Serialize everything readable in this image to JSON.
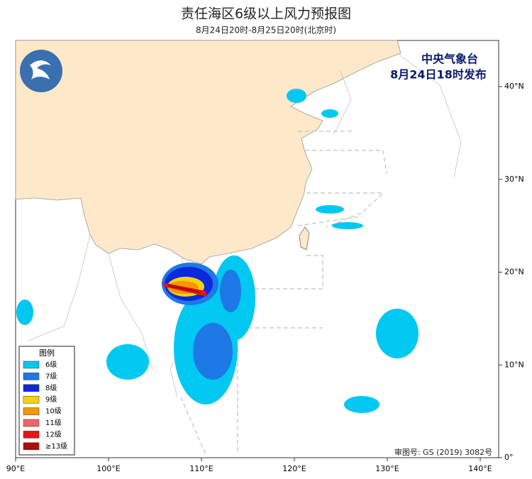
{
  "header": {
    "title": "责任海区6级以上风力预报图",
    "subtitle": "8月24日20时-8月25日20时(北京时)"
  },
  "agency": {
    "name": "中央气象台",
    "issue_time": "8月24日18时发布"
  },
  "legend": {
    "title": "图例",
    "items": [
      {
        "label": "6级",
        "color": "#00c8f0"
      },
      {
        "label": "7级",
        "color": "#1e78e6"
      },
      {
        "label": "8级",
        "color": "#0a28dc"
      },
      {
        "label": "9级",
        "color": "#f5d20a"
      },
      {
        "label": "10级",
        "color": "#f5960a"
      },
      {
        "label": "11级",
        "color": "#f56464"
      },
      {
        "label": "12级",
        "color": "#e61414"
      },
      {
        "label": "≥13级",
        "color": "#b40a0a"
      }
    ]
  },
  "axes": {
    "x_labels": [
      "90°E",
      "100°E",
      "110°E",
      "120°E",
      "130°E",
      "140°E"
    ],
    "y_labels": [
      "40°N",
      "30°N",
      "20°N",
      "10°N",
      "0°"
    ]
  },
  "footer": {
    "approval": "审图号: GS (2019) 3082号"
  }
}
